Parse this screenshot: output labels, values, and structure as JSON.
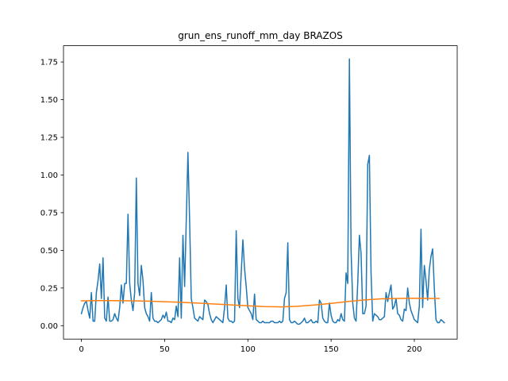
{
  "chart_data": {
    "type": "line",
    "title": "grun_ens_runoff_mm_day BRAZOS",
    "xlabel": "",
    "ylabel": "",
    "xlim": [
      -10.75,
      225.75
    ],
    "ylim": [
      -0.089,
      1.858
    ],
    "xticks": [
      0,
      50,
      100,
      150,
      200
    ],
    "xtick_labels": [
      "0",
      "50",
      "100",
      "150",
      "200"
    ],
    "yticks": [
      0.0,
      0.25,
      0.5,
      0.75,
      1.0,
      1.25,
      1.5,
      1.75
    ],
    "ytick_labels": [
      "0.00",
      "0.25",
      "0.50",
      "0.75",
      "1.00",
      "1.25",
      "1.50",
      "1.75"
    ],
    "grid": false,
    "legend": "none",
    "series": [
      {
        "color": "#1f77b4",
        "x_start": 0,
        "x_step": 1,
        "values": [
          0.08,
          0.12,
          0.15,
          0.16,
          0.1,
          0.05,
          0.22,
          0.03,
          0.03,
          0.22,
          0.3,
          0.41,
          0.18,
          0.45,
          0.05,
          0.03,
          0.19,
          0.03,
          0.03,
          0.04,
          0.08,
          0.05,
          0.03,
          0.12,
          0.27,
          0.15,
          0.28,
          0.28,
          0.74,
          0.28,
          0.17,
          0.1,
          0.22,
          0.98,
          0.28,
          0.2,
          0.4,
          0.3,
          0.12,
          0.08,
          0.06,
          0.03,
          0.22,
          0.05,
          0.03,
          0.03,
          0.02,
          0.03,
          0.04,
          0.07,
          0.05,
          0.09,
          0.03,
          0.03,
          0.02,
          0.05,
          0.04,
          0.13,
          0.06,
          0.45,
          0.05,
          0.6,
          0.26,
          0.7,
          1.15,
          0.7,
          0.18,
          0.12,
          0.05,
          0.04,
          0.03,
          0.06,
          0.05,
          0.04,
          0.17,
          0.16,
          0.14,
          0.08,
          0.04,
          0.02,
          0.04,
          0.06,
          0.05,
          0.04,
          0.03,
          0.02,
          0.12,
          0.27,
          0.05,
          0.03,
          0.03,
          0.02,
          0.03,
          0.63,
          0.18,
          0.12,
          0.35,
          0.57,
          0.38,
          0.26,
          0.12,
          0.1,
          0.08,
          0.04,
          0.21,
          0.04,
          0.03,
          0.02,
          0.02,
          0.03,
          0.02,
          0.02,
          0.02,
          0.02,
          0.03,
          0.03,
          0.02,
          0.02,
          0.02,
          0.03,
          0.02,
          0.03,
          0.18,
          0.22,
          0.55,
          0.04,
          0.02,
          0.02,
          0.03,
          0.02,
          0.01,
          0.01,
          0.02,
          0.03,
          0.05,
          0.02,
          0.02,
          0.03,
          0.04,
          0.02,
          0.02,
          0.03,
          0.02,
          0.17,
          0.15,
          0.05,
          0.03,
          0.02,
          0.02,
          0.15,
          0.07,
          0.03,
          0.02,
          0.02,
          0.04,
          0.03,
          0.08,
          0.04,
          0.03,
          0.35,
          0.28,
          1.77,
          0.5,
          0.15,
          0.05,
          0.03,
          0.28,
          0.6,
          0.48,
          0.08,
          0.08,
          0.13,
          1.07,
          1.13,
          0.35,
          0.03,
          0.08,
          0.07,
          0.06,
          0.04,
          0.04,
          0.05,
          0.06,
          0.22,
          0.16,
          0.22,
          0.27,
          0.11,
          0.13,
          0.18,
          0.08,
          0.07,
          0.04,
          0.03,
          0.11,
          0.1,
          0.25,
          0.15,
          0.1,
          0.07,
          0.04,
          0.03,
          0.02,
          0.13,
          0.64,
          0.12,
          0.4,
          0.3,
          0.17,
          0.37,
          0.46,
          0.51,
          0.25,
          0.04,
          0.02,
          0.02,
          0.04,
          0.03,
          0.02
        ]
      },
      {
        "color": "#ff7f0e",
        "x": [
          0,
          10,
          20,
          30,
          40,
          50,
          60,
          70,
          80,
          90,
          100,
          110,
          120,
          130,
          140,
          150,
          160,
          170,
          180,
          190,
          200,
          210,
          215
        ],
        "values": [
          0.165,
          0.166,
          0.166,
          0.165,
          0.163,
          0.159,
          0.155,
          0.15,
          0.144,
          0.138,
          0.132,
          0.127,
          0.125,
          0.129,
          0.137,
          0.148,
          0.16,
          0.171,
          0.178,
          0.181,
          0.182,
          0.181,
          0.181
        ]
      }
    ]
  }
}
